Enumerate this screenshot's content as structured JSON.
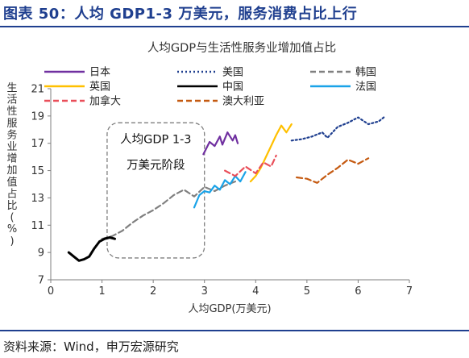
{
  "figure_title": "图表 50：人均 GDP1-3 万美元，服务消费占比上行",
  "source_note": "资料来源：Wind，申万宏源研究",
  "chart_data": {
    "type": "line",
    "title": "人均GDP与生活性服务业增加值占比",
    "xlabel": "人均GDP(万美元)",
    "ylabel": "生活性服务业增加值占比(%)",
    "xlim": [
      0,
      7
    ],
    "ylim": [
      7,
      21
    ],
    "x_ticks": [
      "0",
      "1",
      "2",
      "3",
      "4",
      "5",
      "6",
      "7"
    ],
    "y_ticks": [
      "7",
      "9",
      "11",
      "13",
      "15",
      "17",
      "19",
      "21"
    ],
    "grid": false,
    "legend_position": "top",
    "annotation": [
      "人均GDP 1-3",
      "万美元阶段"
    ],
    "annotation_box": {
      "x_range": [
        1.1,
        3.0
      ],
      "y_range": [
        8.6,
        18.5
      ]
    },
    "series": [
      {
        "name": "日本",
        "color": "#7030a0",
        "dash": "solid",
        "x": [
          2.98,
          3.1,
          3.2,
          3.3,
          3.35,
          3.45,
          3.55,
          3.6,
          3.65
        ],
        "y": [
          16.2,
          17.1,
          16.8,
          17.5,
          16.9,
          17.8,
          17.2,
          17.6,
          17.0
        ]
      },
      {
        "name": "美国",
        "color": "#1f3f8f",
        "dash": "dot",
        "x": [
          4.7,
          4.9,
          5.1,
          5.3,
          5.4,
          5.6,
          5.8,
          6.0,
          6.2,
          6.4,
          6.5
        ],
        "y": [
          17.2,
          17.3,
          17.5,
          17.8,
          17.4,
          18.2,
          18.5,
          18.9,
          18.4,
          18.6,
          18.9
        ]
      },
      {
        "name": "韩国",
        "color": "#808080",
        "dash": "dash",
        "x": [
          1.0,
          1.2,
          1.4,
          1.6,
          1.8,
          2.0,
          2.2,
          2.4,
          2.6,
          2.8,
          3.0,
          3.2,
          3.4,
          3.6
        ],
        "y": [
          10.0,
          10.2,
          10.6,
          11.2,
          11.7,
          12.1,
          12.6,
          13.2,
          13.6,
          13.1,
          13.8,
          13.5,
          13.9,
          14.2
        ]
      },
      {
        "name": "英国",
        "color": "#ffc000",
        "dash": "solid",
        "x": [
          3.9,
          4.0,
          4.1,
          4.2,
          4.3,
          4.4,
          4.5,
          4.6,
          4.7
        ],
        "y": [
          14.2,
          14.6,
          15.2,
          16.0,
          16.8,
          17.6,
          18.3,
          17.8,
          18.4
        ]
      },
      {
        "name": "中国",
        "color": "#000000",
        "dash": "solid",
        "x": [
          0.35,
          0.45,
          0.55,
          0.65,
          0.75,
          0.85,
          0.95,
          1.05,
          1.15,
          1.25
        ],
        "y": [
          9.0,
          8.7,
          8.4,
          8.5,
          8.7,
          9.3,
          9.8,
          10.0,
          10.1,
          10.0
        ]
      },
      {
        "name": "法国",
        "color": "#1aa3e8",
        "dash": "solid",
        "x": [
          2.8,
          2.9,
          3.0,
          3.1,
          3.2,
          3.3,
          3.4,
          3.5,
          3.6,
          3.7,
          3.8
        ],
        "y": [
          12.3,
          13.2,
          13.5,
          13.4,
          13.9,
          13.6,
          14.3,
          14.0,
          14.6,
          14.2,
          14.9
        ]
      },
      {
        "name": "加拿大",
        "color": "#e94f5a",
        "dash": "dash",
        "x": [
          3.4,
          3.6,
          3.8,
          4.0,
          4.15,
          4.3,
          4.4
        ],
        "y": [
          15.0,
          14.6,
          15.3,
          14.8,
          15.6,
          15.3,
          16.1
        ]
      },
      {
        "name": "澳大利亚",
        "color": "#c55a11",
        "dash": "dash",
        "x": [
          4.8,
          5.0,
          5.2,
          5.4,
          5.6,
          5.8,
          6.0,
          6.2
        ],
        "y": [
          14.5,
          14.4,
          14.1,
          14.7,
          15.2,
          15.8,
          15.5,
          15.9
        ]
      }
    ]
  }
}
